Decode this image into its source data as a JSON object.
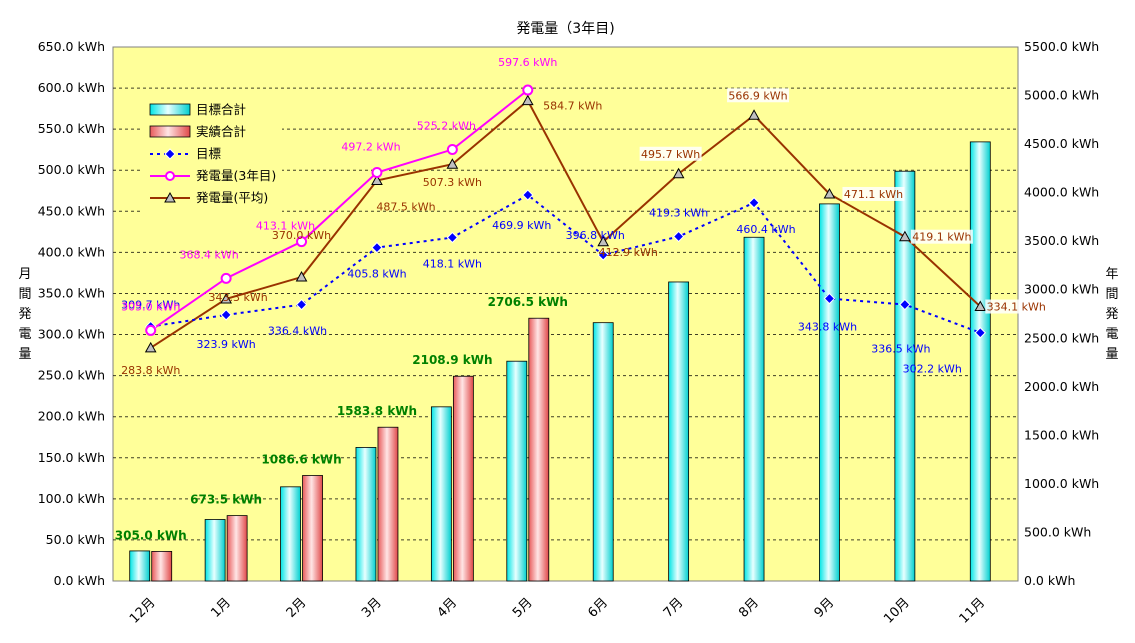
{
  "colors": {
    "plot_bg": "#FFFF99",
    "grid": "#000000",
    "target_bar": "#00FFFF",
    "actual_bar": "#FF7F7F",
    "target_monthly": "#0000FF",
    "gen_year3": "#FF00FF",
    "gen_avg": "#993300",
    "cum_label": "#008000"
  },
  "chart_data": {
    "type": "bar+line",
    "title": "発電量（3年目)",
    "y_left_label": "月間発電量",
    "y_right_label": "年間発電量",
    "y_left_range": [
      0,
      650
    ],
    "y_right_range": [
      0,
      5500
    ],
    "y_left_ticks": [
      "0.0 kWh",
      "50.0 kWh",
      "100.0 kWh",
      "150.0 kWh",
      "200.0 kWh",
      "250.0 kWh",
      "300.0 kWh",
      "350.0 kWh",
      "400.0 kWh",
      "450.0 kWh",
      "500.0 kWh",
      "550.0 kWh",
      "600.0 kWh",
      "650.0 kWh"
    ],
    "y_right_ticks": [
      "0.0 kWh",
      "500.0 kWh",
      "1000.0 kWh",
      "1500.0 kWh",
      "2000.0 kWh",
      "2500.0 kWh",
      "3000.0 kWh",
      "3500.0 kWh",
      "4000.0 kWh",
      "4500.0 kWh",
      "5000.0 kWh",
      "5500.0 kWh"
    ],
    "categories": [
      "12月",
      "1月",
      "2月",
      "3月",
      "4月",
      "5月",
      "6月",
      "7月",
      "8月",
      "9月",
      "10月",
      "11月"
    ],
    "legend_placement": "top-left",
    "grid": "horizontal dashed",
    "series": [
      {
        "name": "目標合計",
        "kind": "bar",
        "axis": "right",
        "values": [
          309.7,
          633.6,
          970.0,
          1375.8,
          1793.9,
          2263.8,
          2660.6,
          3079.9,
          3540.3,
          3884.1,
          4220.6,
          4522.8
        ]
      },
      {
        "name": "実績合計",
        "kind": "bar",
        "axis": "right",
        "values": [
          305.0,
          673.5,
          1086.6,
          1583.8,
          2108.9,
          2706.5,
          null,
          null,
          null,
          null,
          null,
          null
        ],
        "labels": [
          "305.0 kWh",
          "673.5 kWh",
          "1086.6 kWh",
          "1583.8 kWh",
          "2108.9 kWh",
          "2706.5 kWh"
        ]
      },
      {
        "name": "目標",
        "kind": "line",
        "axis": "left",
        "values": [
          309.7,
          323.9,
          336.4,
          405.8,
          418.1,
          469.9,
          396.8,
          419.3,
          460.4,
          343.8,
          336.5,
          302.2
        ],
        "labels": [
          "309.7 kWh",
          "323.9 kWh",
          "336.4 kWh",
          "405.8 kWh",
          "418.1 kWh",
          "469.9 kWh",
          "396.8 kWh",
          "419.3 kWh",
          "460.4 kWh",
          "343.8 kWh",
          "336.5 kWh",
          "302.2 kWh"
        ]
      },
      {
        "name": "発電量(3年目)",
        "kind": "line",
        "axis": "left",
        "values": [
          305.0,
          368.4,
          413.1,
          497.2,
          525.2,
          597.6,
          null,
          null,
          null,
          null,
          null,
          null
        ],
        "labels": [
          "305.0 kWh",
          "368.4 kWh",
          "413.1 kWh",
          "497.2 kWh",
          "525.2 kWh",
          "597.6 kWh"
        ]
      },
      {
        "name": "発電量(平均)",
        "kind": "line",
        "axis": "left",
        "values": [
          283.8,
          343.3,
          370.0,
          487.5,
          507.3,
          584.7,
          412.9,
          495.7,
          566.9,
          471.1,
          419.1,
          334.1
        ],
        "labels": [
          "283.8 kWh",
          "343.3 kWh",
          "370.0 kWh",
          "487.5 kWh",
          "507.3 kWh",
          "584.7 kWh",
          "412.9 kWh",
          "495.7 kWh",
          "566.9 kWh",
          "471.1 kWh",
          "419.1 kWh",
          "334.1 kWh"
        ]
      }
    ]
  }
}
